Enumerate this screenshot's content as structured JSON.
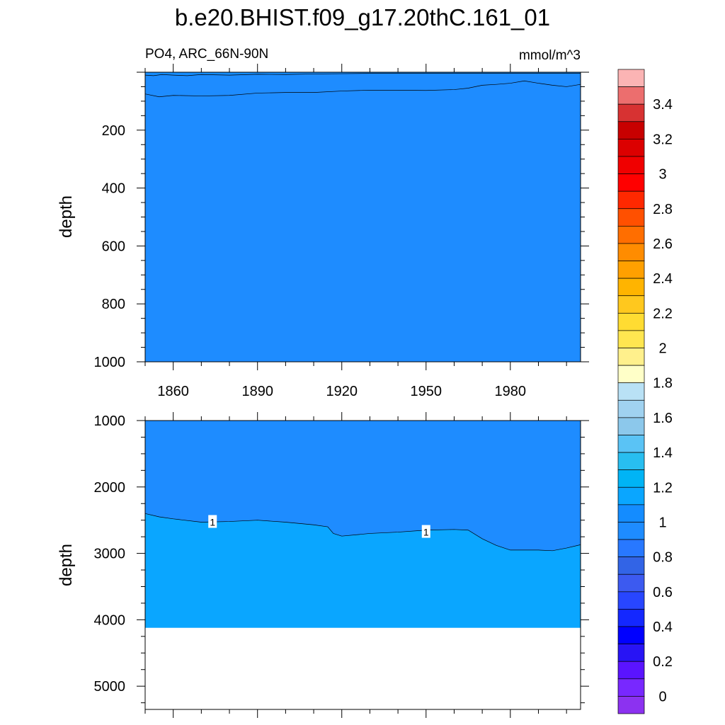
{
  "figure": {
    "title": "b.e20.BHIST.f09_g17.20thC.161_01",
    "subtitle_left": "PO4, ARC_66N-90N",
    "subtitle_right": "mmol/m^3"
  },
  "chart_data": [
    {
      "type": "heatmap",
      "name": "upper-panel",
      "ylabel": "depth",
      "xlim": [
        1850,
        2005
      ],
      "ylim": [
        1000,
        0
      ],
      "xticks": [
        1860,
        1890,
        1920,
        1950,
        1980
      ],
      "yticks": [
        200,
        400,
        600,
        800,
        1000
      ],
      "fill_color": "#1e8cff",
      "surface_band_color": "#168eff",
      "contour_lines": [
        {
          "x": [
            1850,
            1855,
            1860,
            1870,
            1880,
            1890,
            1900,
            1910,
            1920,
            1930,
            1940,
            1950,
            1960,
            1965,
            1970,
            1975,
            1980,
            1985,
            1990,
            1995,
            2000,
            2005
          ],
          "y": [
            75,
            85,
            80,
            82,
            80,
            72,
            70,
            70,
            65,
            62,
            62,
            63,
            60,
            55,
            45,
            42,
            38,
            30,
            38,
            45,
            50,
            42
          ]
        },
        {
          "x": [
            1850,
            1853,
            1856,
            1860,
            1865,
            1870,
            1880,
            1890,
            1900,
            1910,
            1920,
            1930,
            1940,
            1950,
            1960,
            1970,
            1980,
            1990,
            2000,
            2005
          ],
          "y": [
            10,
            12,
            8,
            10,
            12,
            8,
            10,
            7,
            8,
            6,
            5,
            4,
            4,
            4,
            4,
            4,
            4,
            4,
            4,
            4
          ]
        }
      ]
    },
    {
      "type": "heatmap",
      "name": "lower-panel",
      "ylabel": "depth",
      "xlim": [
        1850,
        2005
      ],
      "ylim": [
        5350,
        1000
      ],
      "xticks": [
        1860,
        1890,
        1920,
        1950,
        1980
      ],
      "yticks": [
        1000,
        2000,
        3000,
        4000,
        5000
      ],
      "upper_color": "#1e8cff",
      "lower_color": "#0aa6ff",
      "ocean_floor_depth": 4120,
      "contour_lines": [
        {
          "x": [
            1850,
            1855,
            1860,
            1870,
            1880,
            1890,
            1900,
            1910,
            1915,
            1917,
            1920,
            1930,
            1940,
            1950,
            1960,
            1965,
            1970,
            1975,
            1980,
            1985,
            1990,
            1995,
            2000,
            2005
          ],
          "y": [
            2400,
            2450,
            2480,
            2530,
            2520,
            2500,
            2530,
            2570,
            2600,
            2700,
            2740,
            2700,
            2680,
            2650,
            2640,
            2650,
            2780,
            2880,
            2950,
            2950,
            2950,
            2960,
            2920,
            2870
          ],
          "labels": [
            {
              "text": "1",
              "x": 1874,
              "y": 2530
            },
            {
              "text": "1",
              "x": 1950,
              "y": 2680
            }
          ]
        }
      ]
    }
  ],
  "colorbar": {
    "colors": [
      "#fbb4b4",
      "#ec6e6e",
      "#d73232",
      "#c80000",
      "#dc0000",
      "#f00000",
      "#ff0000",
      "#ff2800",
      "#ff5000",
      "#ff6e00",
      "#ff8c00",
      "#ffa000",
      "#ffb400",
      "#ffc81e",
      "#ffdc32",
      "#ffe650",
      "#fff08c",
      "#ffffc8",
      "#b9e1f5",
      "#a0d2f0",
      "#8cc8eb",
      "#5ac3f5",
      "#28bef0",
      "#00b4f5",
      "#0aa6ff",
      "#148cff",
      "#1e8cff",
      "#2878ff",
      "#3264e6",
      "#3c5af0",
      "#2846ff",
      "#1428ff",
      "#0000ff",
      "#2814f5",
      "#5a14ff",
      "#7828ff",
      "#8c32f0"
    ],
    "labels": [
      "3.4",
      "3.2",
      "3",
      "2.8",
      "2.6",
      "2.4",
      "2.2",
      "2",
      "1.8",
      "1.6",
      "1.4",
      "1.2",
      "1",
      "0.8",
      "0.6",
      "0.4",
      "0.2",
      "0"
    ]
  }
}
